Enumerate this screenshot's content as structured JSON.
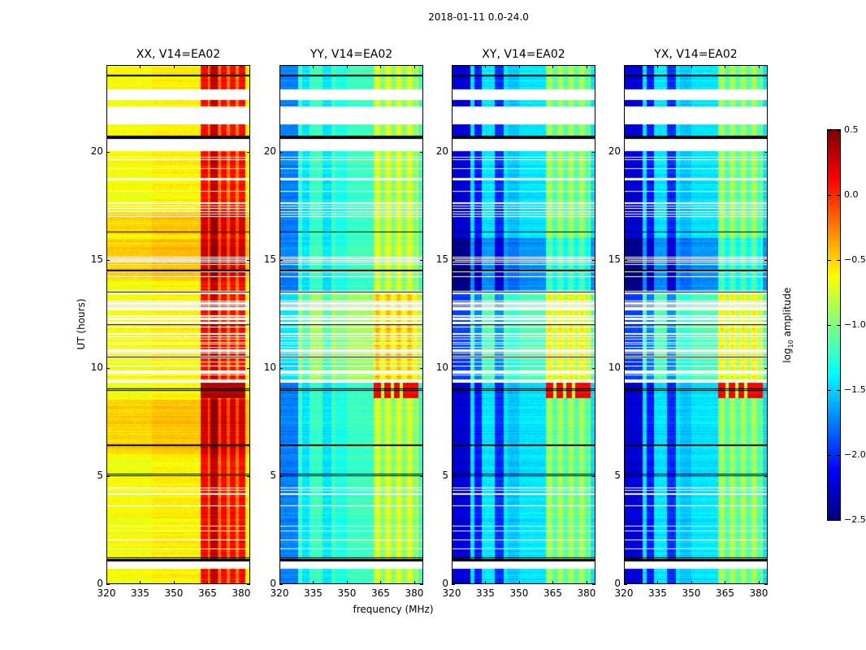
{
  "chart_data": {
    "type": "heatmap",
    "title": "2018-01-11 0.0-24.0",
    "xlabel": "frequency (MHz)",
    "ylabel": "UT (hours)",
    "xlim": [
      320,
      384
    ],
    "ylim": [
      0,
      24
    ],
    "xticks": [
      "320",
      "335",
      "350",
      "365",
      "380"
    ],
    "xtick_values": [
      320,
      335,
      350,
      365,
      380
    ],
    "yticks": [
      "0",
      "5",
      "10",
      "15",
      "20"
    ],
    "ytick_values": [
      0,
      5,
      10,
      15,
      20
    ],
    "colormap": "jet",
    "colorbar": {
      "label_main": "log",
      "label_sub": "10",
      "label_rest": " amplitude",
      "range": [
        -2.5,
        0.5
      ],
      "ticks": [
        "0.5",
        "0.0",
        "−0.5",
        "−1.0",
        "−1.5",
        "−2.0",
        "−2.5"
      ],
      "tick_values": [
        0.5,
        0.0,
        -0.5,
        -1.0,
        -1.5,
        -2.0,
        -2.5
      ]
    },
    "panels": [
      {
        "title": "XX, V14=EA02",
        "base_log_amp": -0.6,
        "rfi_band_mhz": [
          362,
          382
        ],
        "rfi_log_amp": 0.1
      },
      {
        "title": "YY, V14=EA02",
        "base_log_amp": -1.2,
        "rfi_band_mhz": [
          362,
          382
        ],
        "rfi_log_amp": -0.85
      },
      {
        "title": "XY, V14=EA02",
        "base_log_amp": -1.45,
        "rfi_band_mhz": [
          362,
          382
        ],
        "rfi_log_amp": -1.0
      },
      {
        "title": "YX, V14=EA02",
        "base_log_amp": -1.45,
        "rfi_band_mhz": [
          362,
          382
        ],
        "rfi_log_amp": -1.0
      }
    ],
    "flagged_gaps_hours": [
      [
        0.68,
        1.0
      ],
      [
        13.42,
        13.55
      ],
      [
        20.05,
        20.6
      ],
      [
        21.3,
        22.1
      ],
      [
        22.4,
        22.9
      ]
    ],
    "black_lines_hours": [
      1.05,
      1.12,
      1.19,
      5.0,
      5.08,
      6.4,
      8.95,
      9.02,
      10.5,
      12.0,
      13.5,
      14.5,
      16.3,
      20.65,
      20.72,
      23.55
    ],
    "burst_hours": [
      8.6,
      9.3
    ]
  }
}
